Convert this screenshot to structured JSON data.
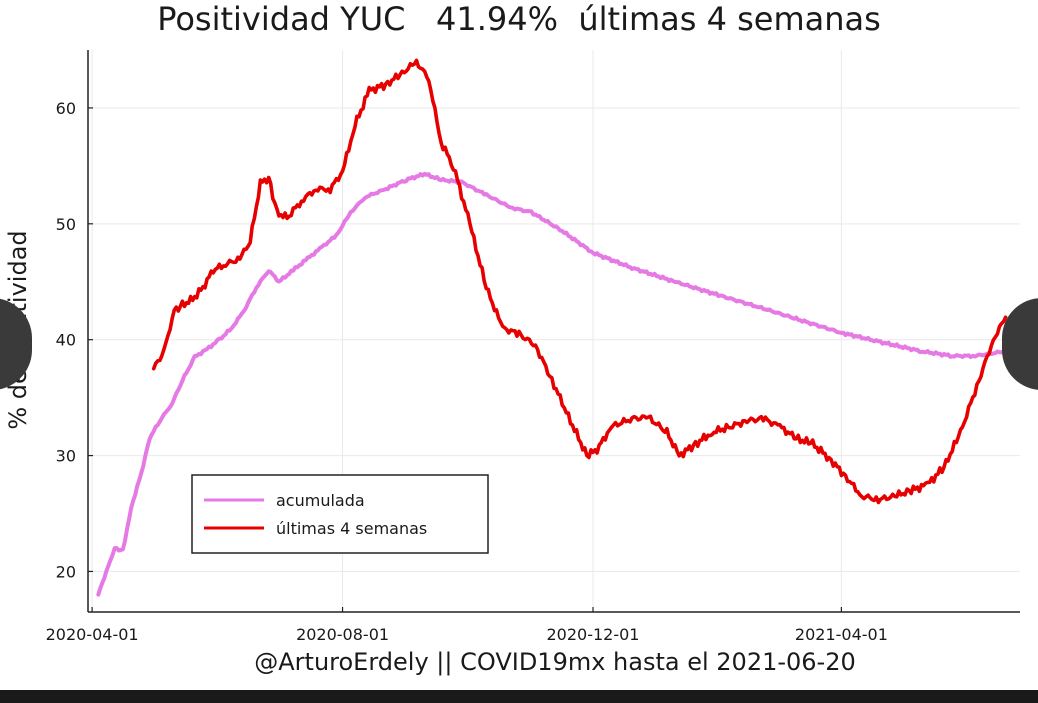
{
  "chart_data": {
    "type": "line",
    "title": "Positividad YUC   41.94%  últimas 4 semanas",
    "xlabel": "@ArturoErdely || COVID19mx hasta el 2021-06-20",
    "ylabel": "% de positividad",
    "xlim": [
      "2020-03-30",
      "2021-06-27"
    ],
    "ylim": [
      16.5,
      65
    ],
    "x_ticks": [
      "2020-04-01",
      "2020-08-01",
      "2020-12-01",
      "2021-04-01"
    ],
    "y_ticks": [
      20,
      30,
      40,
      50,
      60
    ],
    "grid": true,
    "legend_position": "bottom-left",
    "series": [
      {
        "name": "acumulada",
        "color": "#e57ae5",
        "points": [
          [
            "2020-04-04",
            18.0
          ],
          [
            "2020-04-08",
            20.0
          ],
          [
            "2020-04-12",
            22.0
          ],
          [
            "2020-04-16",
            21.8
          ],
          [
            "2020-04-20",
            25.5
          ],
          [
            "2020-04-25",
            28.5
          ],
          [
            "2020-04-29",
            31.5
          ],
          [
            "2020-05-04",
            33.0
          ],
          [
            "2020-05-10",
            34.5
          ],
          [
            "2020-05-15",
            36.5
          ],
          [
            "2020-05-21",
            38.5
          ],
          [
            "2020-05-27",
            39.2
          ],
          [
            "2020-06-02",
            40.0
          ],
          [
            "2020-06-08",
            41.0
          ],
          [
            "2020-06-14",
            42.5
          ],
          [
            "2020-06-20",
            44.5
          ],
          [
            "2020-06-26",
            46.0
          ],
          [
            "2020-07-01",
            45.0
          ],
          [
            "2020-07-08",
            46.0
          ],
          [
            "2020-07-15",
            47.0
          ],
          [
            "2020-07-22",
            48.0
          ],
          [
            "2020-07-29",
            49.0
          ],
          [
            "2020-08-05",
            51.0
          ],
          [
            "2020-08-12",
            52.3
          ],
          [
            "2020-08-22",
            53.0
          ],
          [
            "2020-09-01",
            53.8
          ],
          [
            "2020-09-10",
            54.3
          ],
          [
            "2020-09-18",
            53.8
          ],
          [
            "2020-09-28",
            53.6
          ],
          [
            "2020-10-10",
            52.5
          ],
          [
            "2020-10-22",
            51.4
          ],
          [
            "2020-11-01",
            51.0
          ],
          [
            "2020-11-15",
            49.5
          ],
          [
            "2020-12-01",
            47.5
          ],
          [
            "2020-12-20",
            46.2
          ],
          [
            "2021-01-10",
            45.0
          ],
          [
            "2021-02-01",
            43.8
          ],
          [
            "2021-02-20",
            42.8
          ],
          [
            "2021-03-10",
            41.8
          ],
          [
            "2021-04-01",
            40.6
          ],
          [
            "2021-04-20",
            39.8
          ],
          [
            "2021-05-10",
            39.0
          ],
          [
            "2021-05-25",
            38.6
          ],
          [
            "2021-06-05",
            38.6
          ],
          [
            "2021-06-20",
            39.0
          ]
        ]
      },
      {
        "name": "últimas 4 semanas",
        "color": "#e60000",
        "points": [
          [
            "2020-05-01",
            37.5
          ],
          [
            "2020-05-06",
            39.0
          ],
          [
            "2020-05-11",
            42.5
          ],
          [
            "2020-05-15",
            43.0
          ],
          [
            "2020-05-20",
            43.5
          ],
          [
            "2020-05-25",
            44.5
          ],
          [
            "2020-05-30",
            46.0
          ],
          [
            "2020-06-05",
            46.5
          ],
          [
            "2020-06-12",
            47.0
          ],
          [
            "2020-06-17",
            48.5
          ],
          [
            "2020-06-22",
            53.5
          ],
          [
            "2020-06-26",
            54.0
          ],
          [
            "2020-06-30",
            51.0
          ],
          [
            "2020-07-05",
            50.5
          ],
          [
            "2020-07-12",
            52.0
          ],
          [
            "2020-07-19",
            53.0
          ],
          [
            "2020-07-26",
            53.0
          ],
          [
            "2020-08-01",
            54.5
          ],
          [
            "2020-08-07",
            58.5
          ],
          [
            "2020-08-14",
            61.5
          ],
          [
            "2020-08-22",
            62.0
          ],
          [
            "2020-08-30",
            63.0
          ],
          [
            "2020-09-06",
            64.0
          ],
          [
            "2020-09-12",
            62.5
          ],
          [
            "2020-09-18",
            57.0
          ],
          [
            "2020-09-24",
            55.0
          ],
          [
            "2020-10-02",
            50.0
          ],
          [
            "2020-10-10",
            44.5
          ],
          [
            "2020-10-18",
            41.0
          ],
          [
            "2020-10-26",
            40.5
          ],
          [
            "2020-11-03",
            39.5
          ],
          [
            "2020-11-11",
            36.5
          ],
          [
            "2020-11-20",
            33.0
          ],
          [
            "2020-11-28",
            30.0
          ],
          [
            "2020-12-03",
            30.5
          ],
          [
            "2020-12-10",
            32.5
          ],
          [
            "2020-12-20",
            33.2
          ],
          [
            "2020-12-28",
            33.3
          ],
          [
            "2021-01-06",
            32.0
          ],
          [
            "2021-01-12",
            30.0
          ],
          [
            "2021-01-20",
            31.0
          ],
          [
            "2021-01-28",
            32.0
          ],
          [
            "2021-02-06",
            32.5
          ],
          [
            "2021-02-14",
            33.0
          ],
          [
            "2021-02-22",
            33.2
          ],
          [
            "2021-03-02",
            32.5
          ],
          [
            "2021-03-10",
            31.5
          ],
          [
            "2021-03-18",
            31.0
          ],
          [
            "2021-03-26",
            29.8
          ],
          [
            "2021-04-03",
            28.2
          ],
          [
            "2021-04-11",
            26.5
          ],
          [
            "2021-04-19",
            26.2
          ],
          [
            "2021-04-27",
            26.5
          ],
          [
            "2021-05-05",
            27.0
          ],
          [
            "2021-05-13",
            27.5
          ],
          [
            "2021-05-21",
            29.0
          ],
          [
            "2021-05-29",
            32.0
          ],
          [
            "2021-06-06",
            36.0
          ],
          [
            "2021-06-14",
            40.0
          ],
          [
            "2021-06-20",
            41.94
          ]
        ]
      }
    ]
  }
}
